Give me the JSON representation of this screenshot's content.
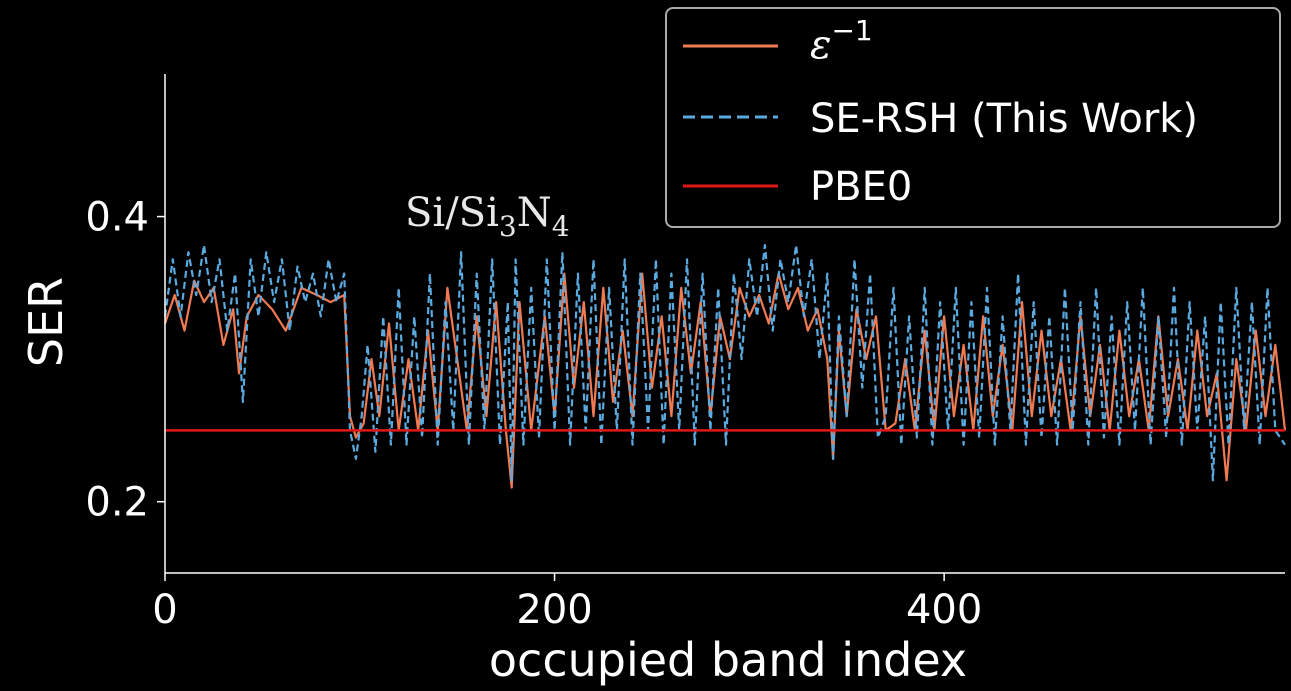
{
  "chart_data": {
    "type": "line",
    "title": "",
    "xlabel": "occupied band index",
    "ylabel": "SER",
    "xlim": [
      0,
      575
    ],
    "ylim": [
      0.15,
      0.5
    ],
    "xticks": [
      0,
      200,
      400
    ],
    "xtick_labels": [
      "0",
      "200",
      "400"
    ],
    "yticks": [
      0.2,
      0.4
    ],
    "ytick_labels": [
      "0.2",
      "0.4"
    ],
    "grid": false,
    "legend_position": "top-right",
    "annotation": {
      "base": "Si/Si",
      "sub1": "3",
      "mid": "N",
      "sub2": "4"
    },
    "series": [
      {
        "name": "ε",
        "name_sup": "−1",
        "style": "solid",
        "color": "#f07b52",
        "x": [
          0,
          5,
          10,
          15,
          20,
          25,
          30,
          35,
          38,
          42,
          48,
          55,
          62,
          70,
          78,
          85,
          92,
          95,
          98,
          102,
          106,
          110,
          115,
          120,
          125,
          130,
          135,
          140,
          145,
          150,
          155,
          160,
          165,
          170,
          175,
          178,
          182,
          188,
          195,
          200,
          205,
          210,
          215,
          220,
          225,
          230,
          235,
          240,
          245,
          250,
          255,
          260,
          265,
          270,
          275,
          280,
          285,
          290,
          295,
          300,
          305,
          310,
          315,
          320,
          325,
          330,
          335,
          340,
          343,
          346,
          350,
          355,
          360,
          365,
          370,
          375,
          380,
          385,
          390,
          395,
          400,
          405,
          410,
          415,
          420,
          425,
          430,
          435,
          440,
          445,
          450,
          455,
          460,
          465,
          470,
          475,
          480,
          485,
          490,
          495,
          500,
          505,
          510,
          515,
          520,
          525,
          530,
          535,
          540,
          545,
          550,
          555,
          560,
          565,
          570,
          575
        ],
        "y": [
          0.325,
          0.345,
          0.32,
          0.355,
          0.34,
          0.35,
          0.31,
          0.335,
          0.29,
          0.33,
          0.345,
          0.335,
          0.32,
          0.35,
          0.345,
          0.34,
          0.345,
          0.26,
          0.245,
          0.255,
          0.3,
          0.26,
          0.325,
          0.25,
          0.3,
          0.25,
          0.32,
          0.25,
          0.35,
          0.3,
          0.25,
          0.33,
          0.26,
          0.34,
          0.25,
          0.21,
          0.34,
          0.25,
          0.33,
          0.26,
          0.36,
          0.28,
          0.34,
          0.26,
          0.35,
          0.27,
          0.32,
          0.26,
          0.36,
          0.28,
          0.33,
          0.26,
          0.35,
          0.29,
          0.34,
          0.26,
          0.33,
          0.3,
          0.35,
          0.33,
          0.345,
          0.325,
          0.36,
          0.335,
          0.35,
          0.32,
          0.335,
          0.3,
          0.23,
          0.32,
          0.26,
          0.335,
          0.3,
          0.33,
          0.25,
          0.255,
          0.3,
          0.25,
          0.32,
          0.25,
          0.33,
          0.26,
          0.31,
          0.25,
          0.33,
          0.26,
          0.31,
          0.25,
          0.34,
          0.26,
          0.32,
          0.26,
          0.3,
          0.25,
          0.33,
          0.26,
          0.31,
          0.25,
          0.32,
          0.26,
          0.3,
          0.25,
          0.33,
          0.26,
          0.3,
          0.25,
          0.32,
          0.26,
          0.29,
          0.215,
          0.3,
          0.25,
          0.32,
          0.26,
          0.31,
          0.25
        ]
      },
      {
        "name": "SE-RSH (This Work)",
        "style": "dashed",
        "color": "#5aaae0",
        "x": [
          0,
          4,
          8,
          12,
          16,
          20,
          24,
          28,
          32,
          36,
          40,
          44,
          48,
          52,
          56,
          60,
          64,
          68,
          72,
          76,
          80,
          84,
          88,
          92,
          95,
          98,
          101,
          104,
          108,
          112,
          116,
          120,
          124,
          128,
          132,
          136,
          140,
          144,
          148,
          152,
          156,
          160,
          164,
          168,
          172,
          176,
          178,
          180,
          184,
          188,
          192,
          196,
          200,
          204,
          208,
          212,
          216,
          220,
          224,
          228,
          232,
          236,
          240,
          244,
          248,
          252,
          256,
          260,
          264,
          268,
          272,
          276,
          280,
          284,
          288,
          292,
          296,
          300,
          304,
          308,
          312,
          316,
          320,
          324,
          328,
          332,
          336,
          340,
          343,
          346,
          350,
          354,
          358,
          362,
          366,
          370,
          374,
          378,
          382,
          386,
          390,
          394,
          398,
          402,
          406,
          410,
          414,
          418,
          422,
          426,
          430,
          434,
          438,
          442,
          446,
          450,
          454,
          458,
          462,
          466,
          470,
          474,
          478,
          482,
          486,
          490,
          494,
          498,
          502,
          506,
          510,
          514,
          518,
          522,
          526,
          530,
          534,
          538,
          542,
          546,
          550,
          554,
          558,
          562,
          566,
          570,
          575
        ],
        "y": [
          0.33,
          0.37,
          0.33,
          0.375,
          0.345,
          0.38,
          0.34,
          0.37,
          0.32,
          0.36,
          0.27,
          0.37,
          0.33,
          0.375,
          0.34,
          0.37,
          0.32,
          0.365,
          0.34,
          0.36,
          0.33,
          0.37,
          0.34,
          0.36,
          0.25,
          0.23,
          0.26,
          0.31,
          0.235,
          0.33,
          0.24,
          0.35,
          0.24,
          0.33,
          0.245,
          0.36,
          0.24,
          0.34,
          0.25,
          0.375,
          0.24,
          0.36,
          0.25,
          0.37,
          0.24,
          0.34,
          0.215,
          0.37,
          0.24,
          0.35,
          0.245,
          0.37,
          0.25,
          0.375,
          0.24,
          0.36,
          0.25,
          0.37,
          0.24,
          0.35,
          0.25,
          0.37,
          0.24,
          0.36,
          0.25,
          0.37,
          0.24,
          0.36,
          0.25,
          0.37,
          0.24,
          0.36,
          0.25,
          0.35,
          0.24,
          0.36,
          0.3,
          0.37,
          0.33,
          0.38,
          0.32,
          0.37,
          0.34,
          0.38,
          0.33,
          0.37,
          0.3,
          0.36,
          0.23,
          0.33,
          0.26,
          0.37,
          0.28,
          0.36,
          0.245,
          0.26,
          0.35,
          0.24,
          0.33,
          0.245,
          0.35,
          0.24,
          0.34,
          0.25,
          0.35,
          0.24,
          0.34,
          0.245,
          0.35,
          0.24,
          0.33,
          0.25,
          0.36,
          0.24,
          0.34,
          0.245,
          0.33,
          0.24,
          0.35,
          0.25,
          0.34,
          0.24,
          0.35,
          0.245,
          0.33,
          0.24,
          0.34,
          0.25,
          0.35,
          0.24,
          0.33,
          0.245,
          0.35,
          0.24,
          0.34,
          0.25,
          0.33,
          0.215,
          0.34,
          0.24,
          0.35,
          0.25,
          0.34,
          0.24,
          0.35,
          0.25,
          0.24
        ]
      },
      {
        "name": "PBE0",
        "style": "solid",
        "color": "#e01818",
        "x": [
          0,
          575
        ],
        "y": [
          0.25,
          0.25
        ]
      }
    ]
  }
}
